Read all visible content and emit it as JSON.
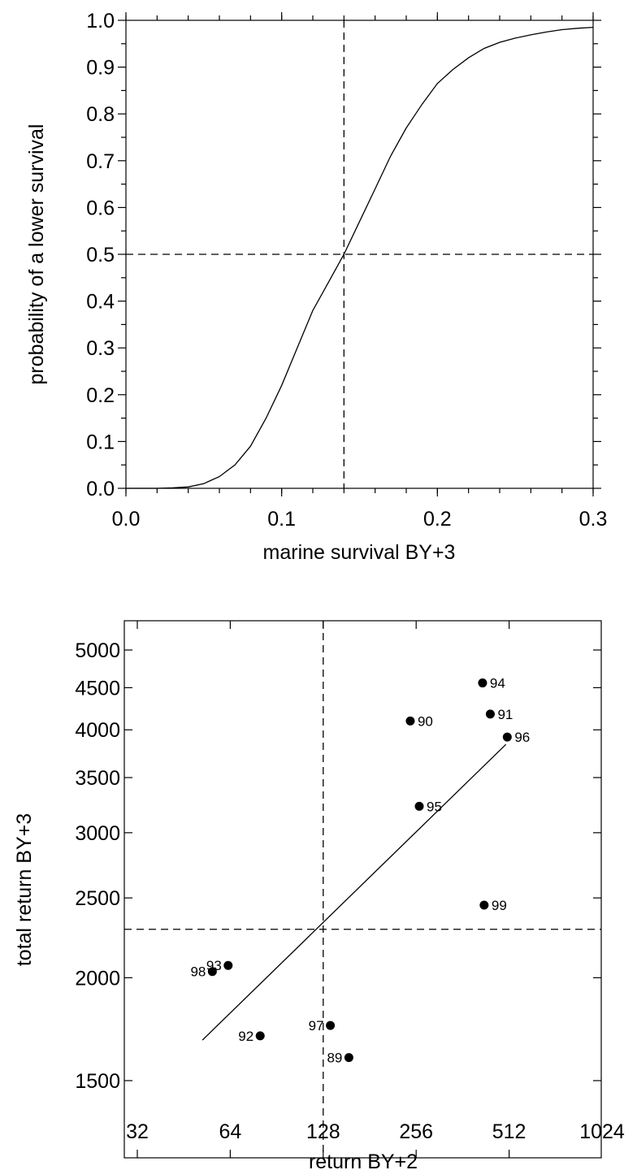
{
  "chart_data": [
    {
      "type": "line",
      "xlabel": "marine survival BY+3",
      "ylabel": "probability of a lower survival",
      "xlim": [
        0.0,
        0.3
      ],
      "ylim": [
        0.0,
        1.0
      ],
      "x_ticks": [
        "0.0",
        "0.1",
        "0.2",
        "0.3"
      ],
      "y_ticks": [
        "0.0",
        "0.1",
        "0.2",
        "0.3",
        "0.4",
        "0.5",
        "0.6",
        "0.7",
        "0.8",
        "0.9",
        "1.0"
      ],
      "grid": false,
      "series": [
        {
          "x": [
            0.0,
            0.02,
            0.03,
            0.04,
            0.05,
            0.06,
            0.07,
            0.08,
            0.09,
            0.1,
            0.11,
            0.12,
            0.13,
            0.14,
            0.15,
            0.16,
            0.17,
            0.18,
            0.19,
            0.2,
            0.21,
            0.22,
            0.23,
            0.24,
            0.25,
            0.26,
            0.27,
            0.28,
            0.29,
            0.3
          ],
          "y": [
            0.0,
            0.0,
            0.001,
            0.003,
            0.01,
            0.025,
            0.05,
            0.09,
            0.15,
            0.22,
            0.3,
            0.38,
            0.44,
            0.5,
            0.57,
            0.64,
            0.71,
            0.77,
            0.82,
            0.865,
            0.895,
            0.92,
            0.94,
            0.953,
            0.962,
            0.969,
            0.975,
            0.98,
            0.983,
            0.985
          ]
        }
      ],
      "reference_lines": {
        "x": 0.14,
        "y": 0.5
      }
    },
    {
      "type": "scatter",
      "xlabel": "return BY+2",
      "ylabel": "total return BY+3",
      "x_scale": "log2",
      "y_scale": "log",
      "xlim": [
        32,
        1024
      ],
      "ylim": [
        1300,
        5400
      ],
      "x_ticks": [
        "32",
        "64",
        "128",
        "256",
        "512",
        "1024"
      ],
      "y_ticks": [
        "1500",
        "2000",
        "2500",
        "3000",
        "3500",
        "4000",
        "4500",
        "5000"
      ],
      "grid": false,
      "points": [
        {
          "label": "89",
          "x": 155,
          "y": 1600
        },
        {
          "label": "90",
          "x": 245,
          "y": 4100
        },
        {
          "label": "91",
          "x": 445,
          "y": 4180
        },
        {
          "label": "92",
          "x": 80,
          "y": 1700
        },
        {
          "label": "93",
          "x": 63,
          "y": 2070
        },
        {
          "label": "94",
          "x": 420,
          "y": 4560
        },
        {
          "label": "95",
          "x": 262,
          "y": 3230
        },
        {
          "label": "96",
          "x": 505,
          "y": 3920
        },
        {
          "label": "97",
          "x": 135,
          "y": 1750
        },
        {
          "label": "98",
          "x": 56,
          "y": 2035
        },
        {
          "label": "99",
          "x": 425,
          "y": 2450
        }
      ],
      "fit_line": {
        "x": [
          52,
          500
        ],
        "y": [
          1680,
          3840
        ]
      },
      "reference_lines": {
        "x": 128,
        "y": 2290
      }
    }
  ]
}
